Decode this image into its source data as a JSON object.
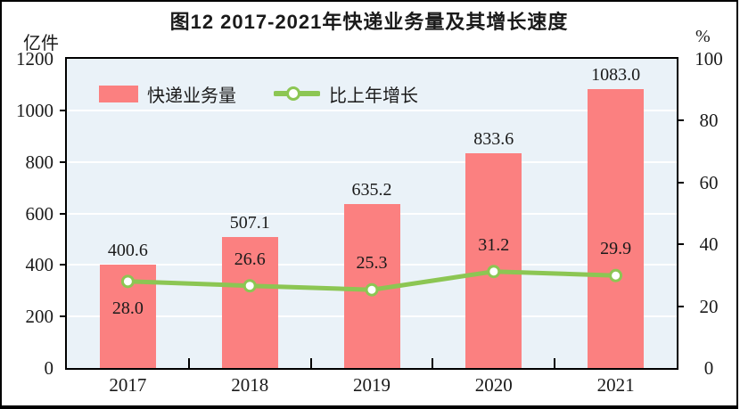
{
  "figure": {
    "title": "图12  2017-2021年快递业务量及其增长速度",
    "left_unit": "亿件",
    "right_unit": "%"
  },
  "legend": {
    "bar_label": "快递业务量",
    "line_label": "比上年增长"
  },
  "colors": {
    "bar": "#FB8080",
    "line": "#8CC653",
    "marker_fill": "#FFFFFF",
    "plot_background": "#EAF2F8",
    "gridline": "#FFFFFF",
    "axis": "#000000",
    "text": "#1A1A1A"
  },
  "chart_data": {
    "type": "bar",
    "title": "图12  2017-2021年快递业务量及其增长速度",
    "categories": [
      "2017",
      "2018",
      "2019",
      "2020",
      "2021"
    ],
    "series": [
      {
        "name": "快递业务量",
        "type": "bar",
        "axis": "left",
        "values": [
          400.6,
          507.1,
          635.2,
          833.6,
          1083.0
        ],
        "labels": [
          "400.6",
          "507.1",
          "635.2",
          "833.6",
          "1083.0"
        ]
      },
      {
        "name": "比上年增长",
        "type": "line",
        "axis": "right",
        "values": [
          28.0,
          26.6,
          25.3,
          31.2,
          29.9
        ],
        "labels": [
          "28.0",
          "26.6",
          "25.3",
          "31.2",
          "29.9"
        ],
        "label_positions": [
          "below",
          "above",
          "above",
          "above",
          "above"
        ]
      }
    ],
    "left_axis": {
      "label": "亿件",
      "ticks": [
        0,
        200,
        400,
        600,
        800,
        1000,
        1200
      ],
      "lim": [
        0,
        1200
      ]
    },
    "right_axis": {
      "label": "%",
      "ticks": [
        0,
        20,
        40,
        60,
        80,
        100
      ],
      "lim": [
        0,
        100
      ]
    },
    "grid": true,
    "legend_position": "top-left-inside"
  }
}
